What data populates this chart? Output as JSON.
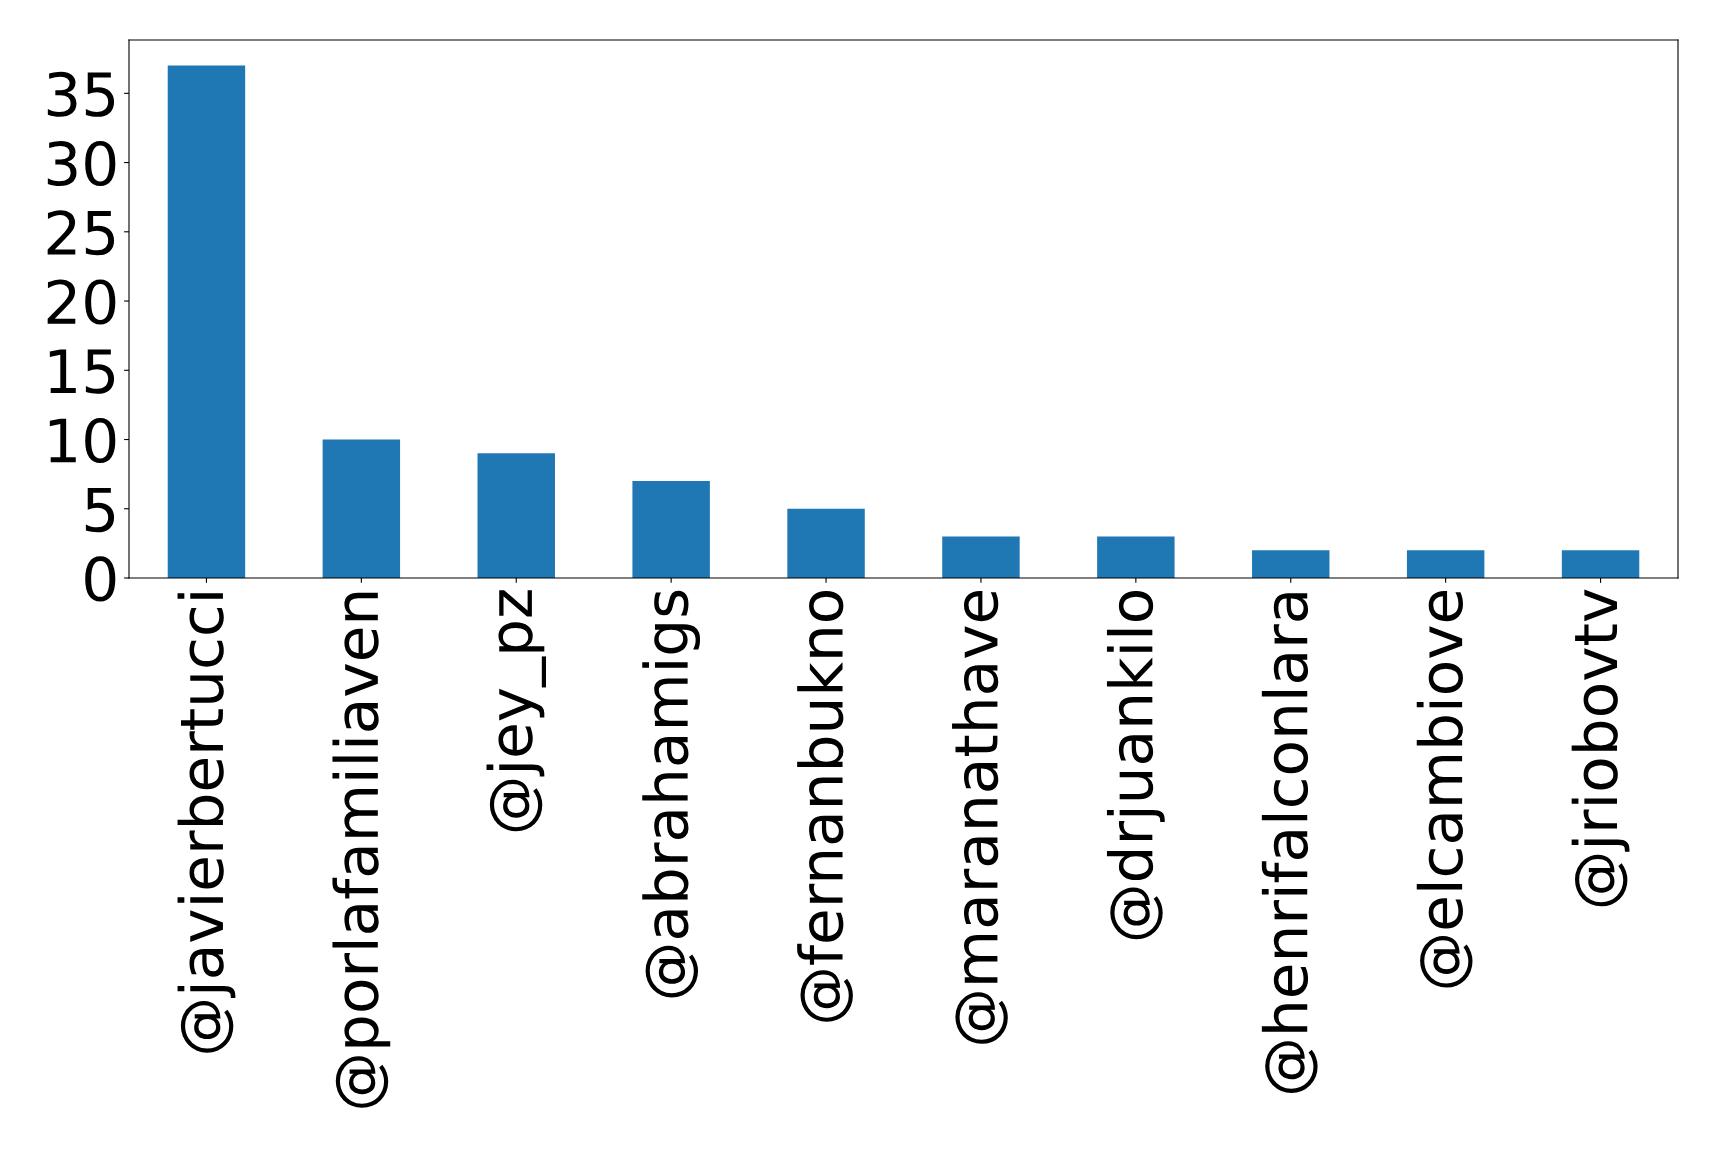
{
  "chart_data": {
    "type": "bar",
    "categories": [
      "@javierbertucci",
      "@porlafamiliaven",
      "@jey_pz",
      "@abrahamigs",
      "@fernanbukno",
      "@maranathave",
      "@drjuankilo",
      "@henrifalconlara",
      "@elcambiove",
      "@jriobovtv"
    ],
    "values": [
      37,
      10,
      9,
      7,
      5,
      3,
      3,
      2,
      2,
      2
    ],
    "color": "#1f77b4",
    "ylim": [
      0,
      38.85
    ],
    "yticks": [
      0,
      5,
      10,
      15,
      20,
      25,
      30,
      35
    ],
    "grid": false,
    "legend": false
  }
}
